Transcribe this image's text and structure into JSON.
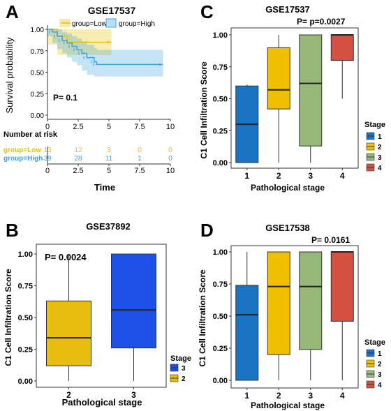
{
  "colors": {
    "low": "#e6c000",
    "high": "#3ba3dc",
    "stage1": "#1a74c4",
    "stage2": "#f0c000",
    "stage3": "#98b87a",
    "stage4": "#d45040",
    "b_stage3": "#1d50e6",
    "b_stage2": "#e8bc10"
  },
  "chart_data": [
    {
      "panel": "A",
      "type": "line",
      "title": "GSE17537",
      "xlabel": "Time",
      "ylabel": "Survival probability",
      "annotation": "P= 0.1",
      "xlim": [
        0,
        10
      ],
      "ylim": [
        0,
        1
      ],
      "xticks": [
        "0",
        "2.5",
        "5",
        "7.5",
        "10"
      ],
      "yticks": [
        "0.00",
        "0.25",
        "0.50",
        "0.75",
        "1.00"
      ],
      "legend": [
        "group=Low",
        "group=High"
      ],
      "series": [
        {
          "name": "group=Low",
          "x": [
            0,
            0.8,
            1.6,
            3.4,
            5.2
          ],
          "y": [
            1.0,
            0.92,
            0.85,
            0.85,
            0.85
          ],
          "ci_low": [
            1.0,
            0.82,
            0.7,
            0.7,
            0.7
          ],
          "ci_high": [
            1.0,
            1.0,
            1.0,
            1.0,
            1.0
          ]
        },
        {
          "name": "group=High",
          "x": [
            0,
            0.4,
            0.8,
            1.2,
            1.6,
            2.0,
            2.4,
            2.8,
            3.2,
            3.8,
            4.0,
            9.4
          ],
          "y": [
            1.0,
            0.97,
            0.92,
            0.87,
            0.84,
            0.8,
            0.76,
            0.72,
            0.67,
            0.62,
            0.59,
            0.59
          ],
          "ci_low": [
            1.0,
            0.92,
            0.84,
            0.77,
            0.72,
            0.67,
            0.62,
            0.58,
            0.52,
            0.47,
            0.45,
            0.45
          ],
          "ci_high": [
            1.0,
            1.0,
            1.0,
            0.97,
            0.95,
            0.92,
            0.89,
            0.86,
            0.82,
            0.78,
            0.76,
            0.76
          ]
        }
      ],
      "risk_table": {
        "title": "Number at risk",
        "rows": [
          {
            "name": "group=Low",
            "counts": [
              "13",
              "12",
              "3",
              "0",
              "0"
            ]
          },
          {
            "name": "group=High",
            "counts": [
              "39",
              "28",
              "11",
              "1",
              "0"
            ]
          }
        ]
      }
    },
    {
      "panel": "B",
      "type": "box",
      "title": "GSE37892",
      "xlabel": "Pathological stage",
      "ylabel": "C1 Cell Infiltration Score",
      "annotation": "P= 0.0024",
      "ylim": [
        0,
        1
      ],
      "yticks": [
        "0.00",
        "0.25",
        "0.50",
        "0.75",
        "1.00"
      ],
      "categories": [
        "2",
        "3"
      ],
      "boxes": [
        {
          "stage": "2",
          "min": 0.0,
          "q1": 0.12,
          "median": 0.34,
          "q3": 0.63,
          "max": 1.0
        },
        {
          "stage": "3",
          "min": 0.0,
          "q1": 0.26,
          "median": 0.56,
          "q3": 1.0,
          "max": 1.0
        }
      ],
      "legend_title": "Stage",
      "legend": [
        "3",
        "2"
      ]
    },
    {
      "panel": "C",
      "type": "box",
      "title": "GSE17537",
      "xlabel": "Pathological stage",
      "ylabel": "C1 Cell Infiltration Score",
      "annotation": "P= p=0.0027",
      "ylim": [
        0,
        1
      ],
      "yticks": [
        "0.00",
        "0.25",
        "0.50",
        "0.75",
        "1.00"
      ],
      "categories": [
        "1",
        "2",
        "3",
        "4"
      ],
      "boxes": [
        {
          "stage": "1",
          "min": 0.0,
          "q1": 0.0,
          "median": 0.3,
          "q3": 0.6,
          "max": 0.61
        },
        {
          "stage": "2",
          "min": 0.0,
          "q1": 0.42,
          "median": 0.57,
          "q3": 0.9,
          "max": 1.0
        },
        {
          "stage": "3",
          "min": 0.0,
          "q1": 0.13,
          "median": 0.62,
          "q3": 1.0,
          "max": 1.0
        },
        {
          "stage": "4",
          "min": 0.5,
          "q1": 0.8,
          "median": 1.0,
          "q3": 1.0,
          "max": 1.0
        }
      ],
      "legend_title": "Stage",
      "legend": [
        "1",
        "2",
        "3",
        "4"
      ]
    },
    {
      "panel": "D",
      "type": "box",
      "title": "GSE17538",
      "xlabel": "Pathological stage",
      "ylabel": "C1 Cell Infiltration Score",
      "annotation": "P= 0.0161",
      "ylim": [
        0,
        1
      ],
      "yticks": [
        "0.00",
        "0.25",
        "0.50",
        "0.75",
        "1.00"
      ],
      "categories": [
        "1",
        "2",
        "3",
        "4"
      ],
      "boxes": [
        {
          "stage": "1",
          "min": 0.0,
          "q1": 0.0,
          "median": 0.51,
          "q3": 0.74,
          "max": 1.0
        },
        {
          "stage": "2",
          "min": 0.0,
          "q1": 0.2,
          "median": 0.73,
          "q3": 1.0,
          "max": 1.0
        },
        {
          "stage": "3",
          "min": 0.0,
          "q1": 0.24,
          "median": 0.73,
          "q3": 1.0,
          "max": 1.0
        },
        {
          "stage": "4",
          "min": 0.0,
          "q1": 0.46,
          "median": 1.0,
          "q3": 1.0,
          "max": 1.0
        }
      ],
      "legend_title": "Stage",
      "legend": [
        "1",
        "2",
        "3",
        "4"
      ]
    }
  ],
  "panel_labels": [
    "A",
    "B",
    "C",
    "D"
  ]
}
